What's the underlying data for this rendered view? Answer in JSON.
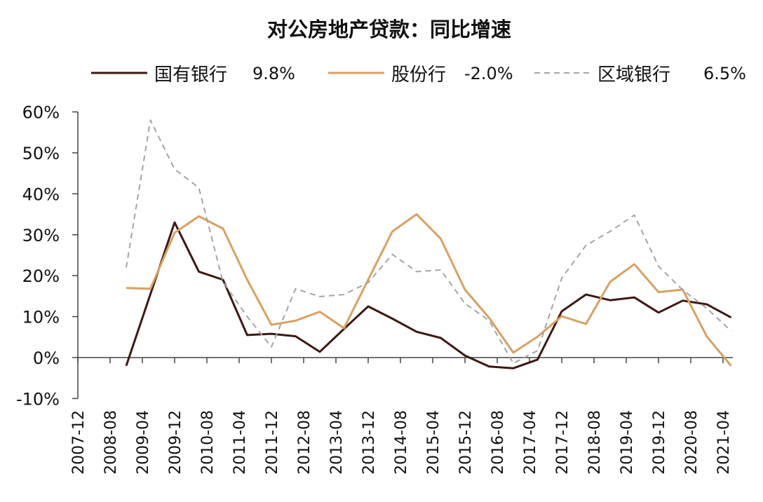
{
  "chart_data": {
    "type": "line",
    "title": "对公房地产贷款：同比增速",
    "xlabel": "",
    "ylabel": "",
    "ylim": [
      -10,
      60
    ],
    "y_ticks": [
      "60%",
      "50%",
      "40%",
      "30%",
      "20%",
      "10%",
      "0%",
      "-10%"
    ],
    "y_tick_values": [
      60,
      50,
      40,
      30,
      20,
      10,
      0,
      -10
    ],
    "x_tick_labels": [
      "2007-12",
      "2008-08",
      "2009-04",
      "2009-12",
      "2010-08",
      "2011-04",
      "2011-12",
      "2012-08",
      "2013-04",
      "2013-12",
      "2014-08",
      "2015-04",
      "2015-12",
      "2016-08",
      "2017-04",
      "2017-12",
      "2018-08",
      "2019-04",
      "2019-12",
      "2020-08",
      "2021-04"
    ],
    "x": [
      "2008-12",
      "2009-06",
      "2009-12",
      "2010-06",
      "2010-12",
      "2011-06",
      "2011-12",
      "2012-06",
      "2012-12",
      "2013-06",
      "2013-12",
      "2014-06",
      "2014-12",
      "2015-06",
      "2015-12",
      "2016-06",
      "2016-12",
      "2017-06",
      "2017-12",
      "2018-06",
      "2018-12",
      "2019-06",
      "2019-12",
      "2020-06",
      "2020-12",
      "2021-06"
    ],
    "grid": false,
    "legend_position": "top",
    "series": [
      {
        "name": "国有银行",
        "latest": "9.8%",
        "color": "#3d1812",
        "dash": "solid",
        "values": [
          -2,
          15.5,
          33,
          21,
          19,
          5.5,
          5.8,
          5.2,
          1.4,
          7,
          12.5,
          9.5,
          6.3,
          4.8,
          0.5,
          -2.2,
          -2.6,
          -0.5,
          11.3,
          15.4,
          14,
          14.7,
          11,
          13.9,
          13,
          9.8
        ]
      },
      {
        "name": "股份行",
        "latest": "-2.0%",
        "color": "#d9a062",
        "dash": "solid",
        "values": [
          17,
          16.8,
          30.5,
          34.5,
          31.5,
          19,
          8,
          9,
          11.2,
          7.2,
          19,
          30.8,
          35,
          29,
          16.6,
          9.7,
          1.2,
          5.1,
          10.1,
          8.2,
          18.5,
          22.8,
          16,
          16.6,
          5.1,
          -2.0
        ]
      },
      {
        "name": "区域银行",
        "latest": "6.5%",
        "color": "#a3a3ab",
        "dash": "dashed",
        "values": [
          22,
          58,
          46,
          41.5,
          18.5,
          10,
          2.6,
          16.8,
          14.9,
          15.4,
          18.3,
          25.2,
          21,
          21.4,
          13.2,
          9,
          -1.4,
          1.7,
          19.4,
          27.4,
          30.8,
          34.8,
          22.3,
          16.5,
          12,
          6.5
        ]
      }
    ]
  }
}
